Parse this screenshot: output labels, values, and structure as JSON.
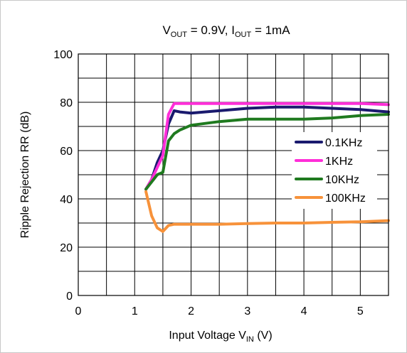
{
  "chart_data": {
    "type": "line",
    "title": {
      "v": "V",
      "v_sub": "OUT",
      "v_rest": " = 0.9V, ",
      "i": "I",
      "i_sub": "OUT",
      "i_rest": " = 1mA"
    },
    "xlabel": {
      "main": "Input Voltage V",
      "sub": "IN",
      "rest": " (V)"
    },
    "ylabel": "Ripple Rejection RR (dB)",
    "xlim": [
      0,
      5.5
    ],
    "ylim": [
      0,
      100
    ],
    "xticks": [
      0,
      1,
      2,
      3,
      4,
      5
    ],
    "yticks": [
      0,
      20,
      40,
      60,
      80,
      100
    ],
    "grid": true,
    "legend_position": "right",
    "series": [
      {
        "name": "0.1KHz",
        "color": "#1a1a6e",
        "x": [
          1.2,
          1.3,
          1.4,
          1.5,
          1.6,
          1.7,
          1.8,
          2.0,
          2.5,
          3.0,
          3.5,
          4.0,
          4.5,
          5.0,
          5.5
        ],
        "y": [
          44,
          48,
          55,
          60,
          71,
          76.5,
          76,
          75.5,
          76.5,
          77.5,
          78,
          78,
          77.5,
          77,
          76
        ]
      },
      {
        "name": "1KHz",
        "color": "#ff2ed8",
        "x": [
          1.2,
          1.3,
          1.4,
          1.5,
          1.6,
          1.7,
          1.8,
          2.0,
          2.5,
          3.0,
          3.5,
          4.0,
          4.5,
          5.0,
          5.5
        ],
        "y": [
          44,
          48,
          53,
          58,
          75,
          79.5,
          79.5,
          79.5,
          79.5,
          79.5,
          79.5,
          79.5,
          79.5,
          79.5,
          79
        ]
      },
      {
        "name": "10KHz",
        "color": "#1f7a1f",
        "x": [
          1.2,
          1.3,
          1.4,
          1.5,
          1.6,
          1.7,
          1.8,
          2.0,
          2.5,
          3.0,
          3.5,
          4.0,
          4.5,
          5.0,
          5.5
        ],
        "y": [
          44,
          47,
          50,
          51,
          64,
          67,
          68.5,
          70.5,
          72,
          73,
          73,
          73,
          73.5,
          74.5,
          75
        ]
      },
      {
        "name": "100KHz",
        "color": "#f7923a",
        "x": [
          1.2,
          1.3,
          1.4,
          1.5,
          1.6,
          1.7,
          2.0,
          2.5,
          3.0,
          3.5,
          4.0,
          4.5,
          5.0,
          5.5
        ],
        "y": [
          43,
          33,
          28,
          26.5,
          29,
          29.5,
          29.5,
          29.5,
          29.8,
          30,
          30,
          30.3,
          30.5,
          31
        ]
      }
    ]
  }
}
